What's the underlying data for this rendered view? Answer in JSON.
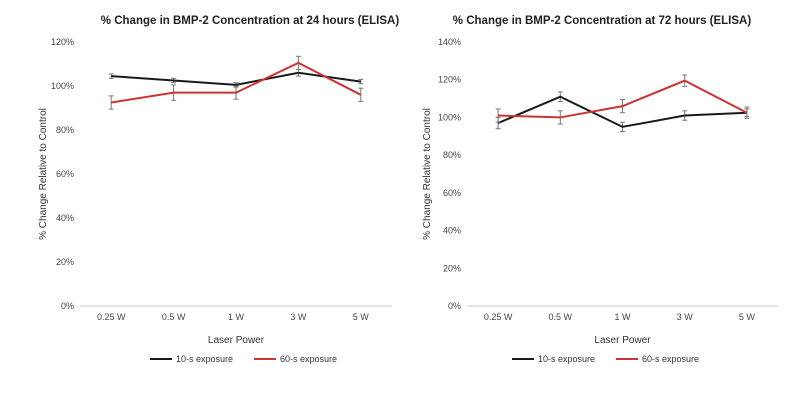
{
  "chart_data": [
    {
      "type": "line",
      "title": "% Change in BMP-2 Concentration at 24 hours (ELISA)",
      "xlabel": "Laser Power",
      "ylabel": "% Change Relative to Control",
      "categories": [
        "0.25 W",
        "0.5 W",
        "1 W",
        "3 W",
        "5 W"
      ],
      "ylim": [
        0,
        120
      ],
      "yticks": [
        "0%",
        "20%",
        "40%",
        "60%",
        "80%",
        "100%",
        "120%"
      ],
      "grid": false,
      "legend": "bottom",
      "series": [
        {
          "name": "10-s exposure",
          "color": "#1a1a1a",
          "values": [
            104.5,
            102.5,
            100.5,
            106,
            102
          ],
          "errors": [
            1,
            1,
            1,
            1.5,
            1
          ]
        },
        {
          "name": "60-s exposure",
          "color": "#cc3333",
          "values": [
            92.5,
            97,
            97,
            110.5,
            96
          ],
          "errors": [
            3,
            3.5,
            3,
            3,
            3
          ]
        }
      ]
    },
    {
      "type": "line",
      "title": "% Change in BMP-2 Concentration at 72 hours (ELISA)",
      "xlabel": "Laser Power",
      "ylabel": "% Change Relative to Control",
      "categories": [
        "0.25 W",
        "0.5 W",
        "1 W",
        "3 W",
        "5 W"
      ],
      "ylim": [
        0,
        140
      ],
      "yticks": [
        "0%",
        "20%",
        "40%",
        "60%",
        "80%",
        "100%",
        "120%",
        "140%"
      ],
      "grid": false,
      "legend": "bottom",
      "series": [
        {
          "name": "10-s exposure",
          "color": "#1a1a1a",
          "values": [
            97,
            111,
            95,
            101,
            102.5
          ],
          "errors": [
            3,
            2.5,
            2.5,
            2.5,
            2
          ]
        },
        {
          "name": "60-s exposure",
          "color": "#cc3333",
          "values": [
            101,
            100,
            106,
            119.5,
            102.5
          ],
          "errors": [
            3.5,
            3.5,
            3.5,
            3,
            3
          ]
        }
      ]
    }
  ]
}
